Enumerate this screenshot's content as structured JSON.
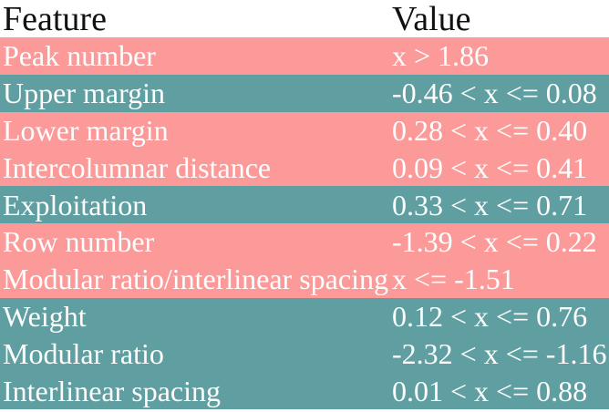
{
  "colors": {
    "pink": "#fc9a9a",
    "teal": "#5f9fa1",
    "header_text": "#111111",
    "row_text": "#fdfdfd",
    "background": "#ffffff"
  },
  "chart_data": {
    "type": "table",
    "columns": [
      "Feature",
      "Value"
    ],
    "rows": [
      {
        "feature": "Peak number",
        "value": "x > 1.86",
        "tone": "pink"
      },
      {
        "feature": "Upper margin",
        "value": "-0.46 < x <= 0.08",
        "tone": "teal"
      },
      {
        "feature": "Lower margin",
        "value": "0.28 < x <= 0.40",
        "tone": "pink"
      },
      {
        "feature": "Intercolumnar distance",
        "value": "0.09 < x <= 0.41",
        "tone": "pink"
      },
      {
        "feature": "Exploitation",
        "value": "0.33 < x <= 0.71",
        "tone": "teal"
      },
      {
        "feature": "Row number",
        "value": "-1.39 < x <= 0.22",
        "tone": "pink"
      },
      {
        "feature": "Modular ratio/interlinear spacing",
        "value": "x <= -1.51",
        "tone": "pink"
      },
      {
        "feature": "Weight",
        "value": "0.12 < x <= 0.76",
        "tone": "teal"
      },
      {
        "feature": "Modular ratio",
        "value": "-2.32 < x <= -1.16",
        "tone": "teal"
      },
      {
        "feature": "Interlinear spacing",
        "value": "0.01 < x <= 0.88",
        "tone": "teal"
      }
    ]
  }
}
